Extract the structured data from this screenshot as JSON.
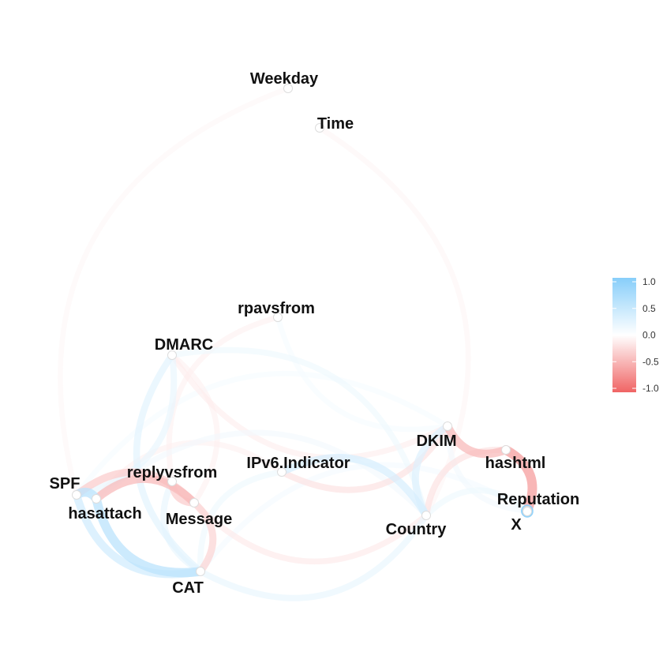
{
  "graph": {
    "nodes": [
      {
        "id": "Weekday",
        "label": "Weekday"
      },
      {
        "id": "Time",
        "label": "Time"
      },
      {
        "id": "rpavsfrom",
        "label": "rpavsfrom"
      },
      {
        "id": "DMARC",
        "label": "DMARC"
      },
      {
        "id": "DKIM",
        "label": "DKIM"
      },
      {
        "id": "hashtml",
        "label": "hashtml"
      },
      {
        "id": "IPv6",
        "label": "IPv6.Indicator"
      },
      {
        "id": "replyvsfrom",
        "label": "replyvsfrom"
      },
      {
        "id": "SPF",
        "label": "SPF"
      },
      {
        "id": "hasattach",
        "label": "hasattach"
      },
      {
        "id": "Message",
        "label": "Message"
      },
      {
        "id": "Reputation",
        "label": "Reputation"
      },
      {
        "id": "X",
        "label": "X"
      },
      {
        "id": "Country",
        "label": "Country"
      },
      {
        "id": "CAT",
        "label": "CAT"
      }
    ],
    "edges": [
      {
        "from": "Weekday",
        "to": "SPF",
        "r": -0.06
      },
      {
        "from": "Time",
        "to": "Country",
        "r": -0.07
      },
      {
        "from": "rpavsfrom",
        "to": "replyvsfrom",
        "r": -0.1
      },
      {
        "from": "rpavsfrom",
        "to": "DKIM",
        "r": 0.08
      },
      {
        "from": "DMARC",
        "to": "SPF",
        "r": 0.2
      },
      {
        "from": "DMARC",
        "to": "CAT",
        "r": 0.25
      },
      {
        "from": "DMARC",
        "to": "DKIM",
        "r": -0.12
      },
      {
        "from": "DMARC",
        "to": "Message",
        "r": -0.1
      },
      {
        "from": "DMARC",
        "to": "Country",
        "r": 0.15
      },
      {
        "from": "SPF",
        "to": "hasattach",
        "r": 0.55
      },
      {
        "from": "SPF",
        "to": "Message",
        "r": -0.35
      },
      {
        "from": "SPF",
        "to": "CAT",
        "r": 0.4
      },
      {
        "from": "SPF",
        "to": "DKIM",
        "r": 0.08
      },
      {
        "from": "hasattach",
        "to": "Message",
        "r": -0.45
      },
      {
        "from": "hasattach",
        "to": "CAT",
        "r": 0.55
      },
      {
        "from": "hasattach",
        "to": "Country",
        "r": 0.12
      },
      {
        "from": "Message",
        "to": "CAT",
        "r": -0.3
      },
      {
        "from": "replyvsfrom",
        "to": "Message",
        "r": -0.35
      },
      {
        "from": "replyvsfrom",
        "to": "CAT",
        "r": 0.2
      },
      {
        "from": "IPv6",
        "to": "Country",
        "r": 0.35
      },
      {
        "from": "IPv6",
        "to": "CAT",
        "r": 0.15
      },
      {
        "from": "IPv6",
        "to": "hasattach",
        "r": -0.1
      },
      {
        "from": "DKIM",
        "to": "Country",
        "r": 0.3
      },
      {
        "from": "DKIM",
        "to": "hashtml",
        "r": -0.45
      },
      {
        "from": "DKIM",
        "to": "Reputation",
        "r": 0.12
      },
      {
        "from": "DKIM",
        "to": "IPv6",
        "r": -0.2
      },
      {
        "from": "hashtml",
        "to": "Reputation",
        "r": -0.6
      },
      {
        "from": "hashtml",
        "to": "Country",
        "r": -0.2
      },
      {
        "from": "Reputation",
        "to": "X",
        "r": 0.95
      },
      {
        "from": "Country",
        "to": "CAT",
        "r": 0.2
      },
      {
        "from": "Country",
        "to": "Message",
        "r": -0.15
      },
      {
        "from": "Reputation",
        "to": "Country",
        "r": 0.15
      },
      {
        "from": "CAT",
        "to": "X",
        "r": 0.1
      }
    ]
  },
  "legend": {
    "ticks": [
      "1.0",
      "0.5",
      "0.0",
      "-0.5",
      "-1.0"
    ],
    "colors": {
      "positive": "#87cefa",
      "zero": "#ffffff",
      "negative": "#f06464"
    }
  }
}
